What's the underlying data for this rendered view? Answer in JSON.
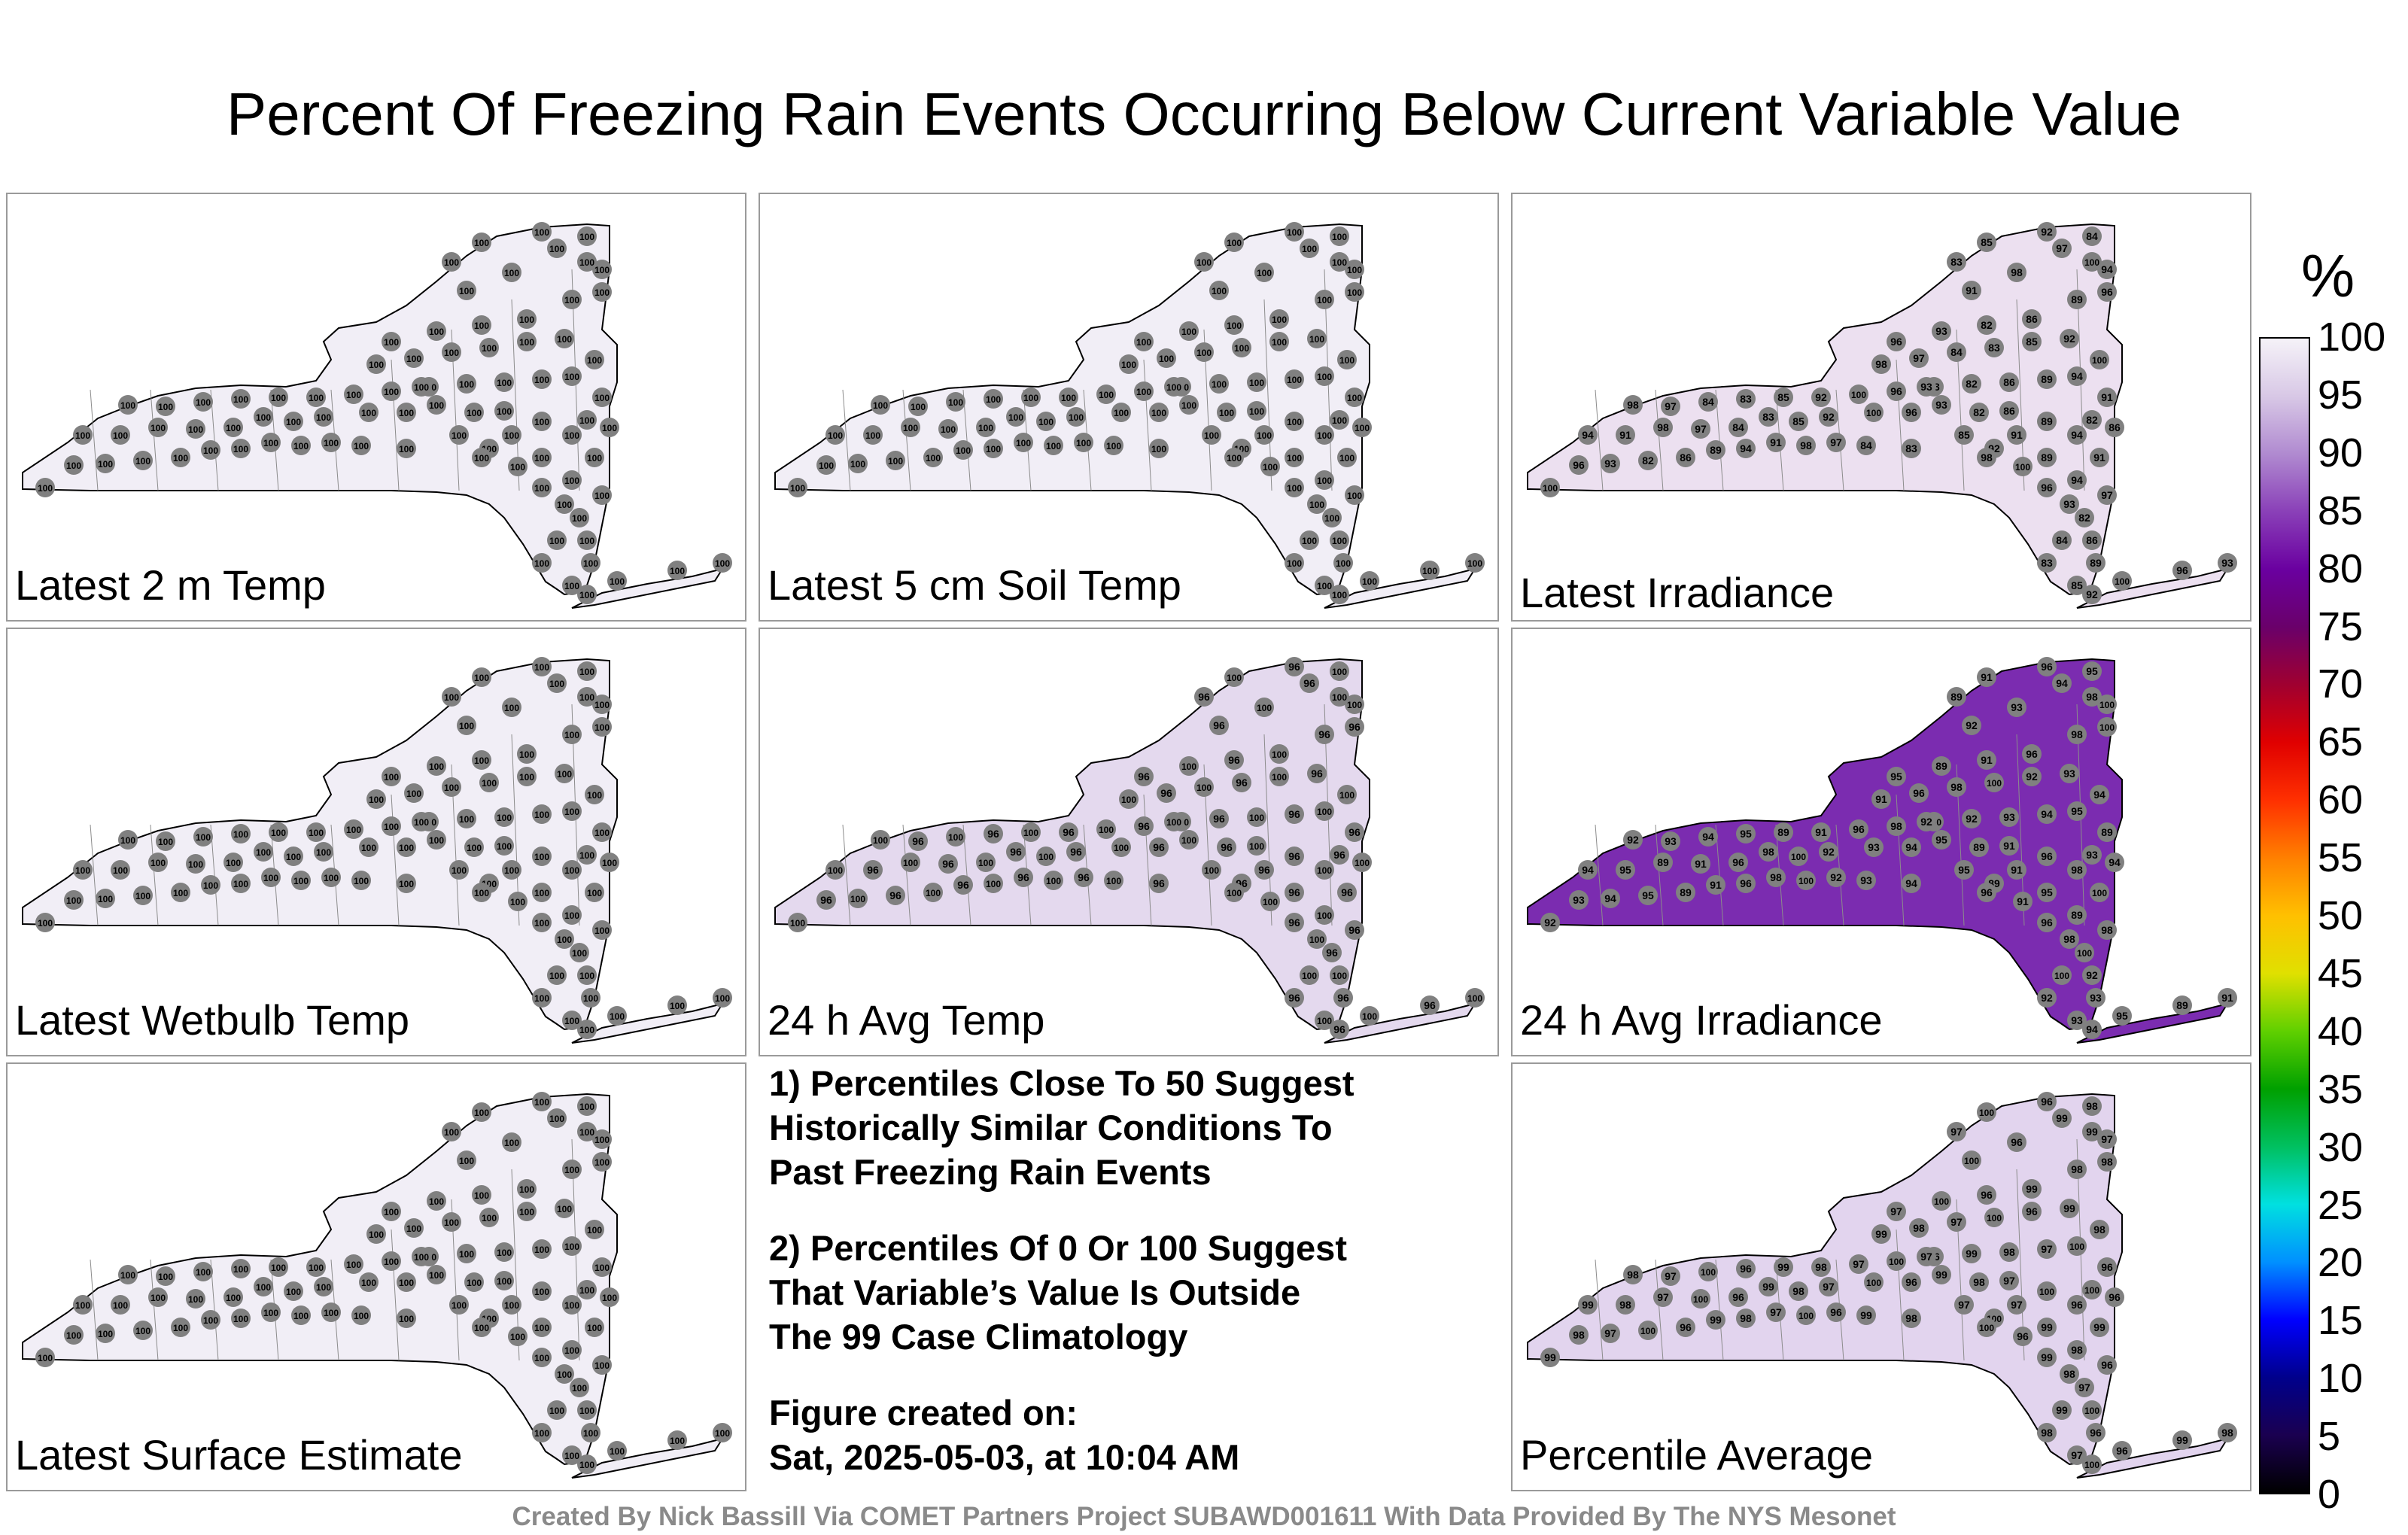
{
  "title": "Percent Of Freezing Rain Events Occurring Below Current Variable Value",
  "panels": [
    {
      "label": "Latest 2 m Temp",
      "fill": "#f1eef6",
      "values": [
        "100"
      ]
    },
    {
      "label": "Latest 5 cm Soil Temp",
      "fill": "#f1eef6",
      "values": [
        "100"
      ]
    },
    {
      "label": "Latest Irradiance",
      "fill": "#ece0f0",
      "values": [
        "100",
        "96",
        "93",
        "82",
        "86",
        "89",
        "94",
        "91",
        "98",
        "97",
        "84",
        "83",
        "85",
        "92"
      ]
    },
    {
      "label": "Latest Wetbulb Temp",
      "fill": "#f1eef6",
      "values": [
        "100"
      ]
    },
    {
      "label": "24 h Avg Temp",
      "fill": "#e4d9ee",
      "values": [
        "100",
        "96"
      ]
    },
    {
      "label": "24 h Avg Irradiance",
      "fill": "#7b2cb0",
      "values": [
        "92",
        "93",
        "94",
        "95",
        "89",
        "91",
        "96",
        "98",
        "100"
      ]
    },
    {
      "label": "Percentile Average",
      "fill": "#e2d4ee",
      "values": [
        "99",
        "98",
        "97",
        "100",
        "96"
      ]
    }
  ],
  "notes": {
    "note1": [
      "1) Percentiles Close To 50 Suggest",
      "Historically Similar Conditions To",
      "Past Freezing Rain Events"
    ],
    "note2": [
      "2) Percentiles Of 0 Or 100 Suggest",
      "That Variable’s Value Is Outside",
      "The 99 Case Climatology"
    ],
    "created": [
      "Figure created on:",
      "Sat, 2025-05-03, at 10:04 AM"
    ]
  },
  "colorbar": {
    "unit": "%",
    "ticks": [
      "100",
      "95",
      "90",
      "85",
      "80",
      "75",
      "70",
      "65",
      "60",
      "55",
      "50",
      "45",
      "40",
      "35",
      "30",
      "25",
      "20",
      "15",
      "10",
      "5",
      "0"
    ],
    "colors": [
      "#000000",
      "#1a0050",
      "#00008c",
      "#0000ff",
      "#0090ff",
      "#00e0e0",
      "#00c060",
      "#00a000",
      "#60d000",
      "#e0e000",
      "#ffc000",
      "#ff8000",
      "#ff3000",
      "#e00000",
      "#a00030",
      "#6a006a",
      "#6a00a0",
      "#8a40b8",
      "#b08ad0",
      "#d8c8e6",
      "#f5f2f8"
    ]
  },
  "footer": "Created By Nick Bassill Via COMET Partners Project SUBAWD001611 With Data Provided By The NYS Mesonet"
}
